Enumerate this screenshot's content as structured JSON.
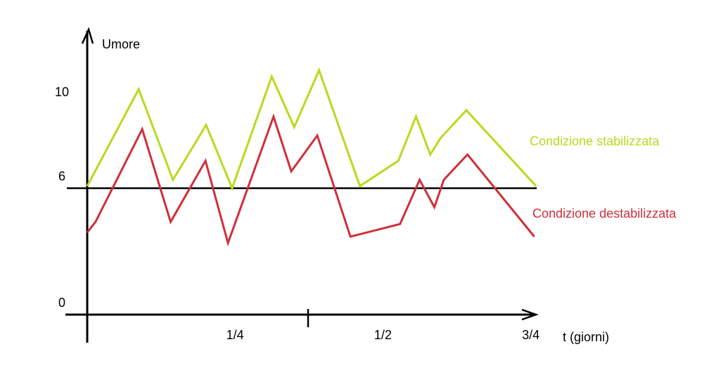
{
  "chart_data": {
    "type": "line",
    "y_label": "Umore",
    "x_label": "t (giorni)",
    "xlim": [
      0,
      0.76
    ],
    "ylim": [
      0,
      13.5
    ],
    "xticks": [
      {
        "value": 0.25,
        "label": "1/4"
      },
      {
        "value": 0.5,
        "label": "1/2"
      },
      {
        "value": 0.75,
        "label": "3/4"
      }
    ],
    "yticks": [
      0,
      6,
      10
    ],
    "hline": 6,
    "series": [
      {
        "name": "Condizione stabilizzata",
        "color": "#b5dc1c",
        "x": [
          0,
          0.087,
          0.145,
          0.201,
          0.245,
          0.312,
          0.35,
          0.392,
          0.461,
          0.526,
          0.556,
          0.58,
          0.598,
          0.641,
          0.759
        ],
        "values": [
          6.1,
          10.7,
          6.4,
          9.0,
          6.0,
          11.3,
          8.9,
          11.6,
          6.1,
          7.3,
          9.4,
          7.6,
          8.4,
          9.7,
          6.1
        ]
      },
      {
        "name": "Condizione destabilizzata",
        "color": "#cf2f3a",
        "x": [
          0,
          0.014,
          0.093,
          0.141,
          0.2,
          0.238,
          0.315,
          0.345,
          0.389,
          0.445,
          0.529,
          0.562,
          0.587,
          0.603,
          0.643,
          0.756
        ],
        "values": [
          3.9,
          4.4,
          8.8,
          4.4,
          7.3,
          3.4,
          9.4,
          6.8,
          8.5,
          3.7,
          4.3,
          6.4,
          5.1,
          6.4,
          7.6,
          3.7
        ]
      }
    ]
  }
}
